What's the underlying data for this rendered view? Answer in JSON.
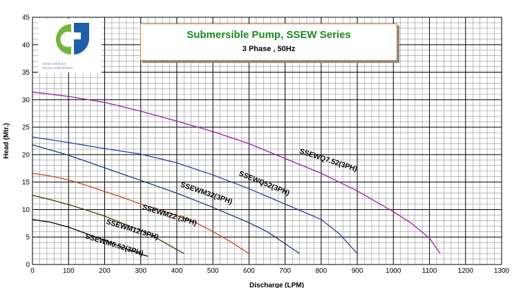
{
  "header": {
    "title": "Submersible Pump, SSEW Series",
    "subtitle": "3 Phase , 50Hz"
  },
  "logo": {
    "tagline_line1": "Smart solutions.",
    "tagline_line2": "Strong relationships.",
    "colors": {
      "green": "#74b43c",
      "blue": "#1f5fa8"
    }
  },
  "chart_data": {
    "type": "line",
    "title": "Submersible Pump, SSEW Series",
    "subtitle": "3 Phase , 50Hz",
    "xlabel": "Discharge (LPM)",
    "ylabel": "Head (Mtr.)",
    "xlim": [
      0,
      1300
    ],
    "ylim": [
      0,
      45
    ],
    "x_ticks": [
      0,
      100,
      200,
      300,
      400,
      500,
      600,
      700,
      800,
      900,
      1000,
      1100,
      1200,
      1300
    ],
    "y_ticks": [
      0,
      5,
      10,
      15,
      20,
      25,
      30,
      35,
      40,
      45
    ],
    "grid": true,
    "series": [
      {
        "name": "SSEWM0.52(3PH)",
        "color": "#000000",
        "x": [
          0,
          50,
          100,
          150,
          200,
          250,
          300,
          320
        ],
        "y": [
          8.2,
          7.7,
          6.8,
          5.6,
          4.4,
          3.1,
          1.9,
          1.5
        ]
      },
      {
        "name": "SSEWM12(3PH)",
        "color": "#3a3a10",
        "x": [
          0,
          50,
          100,
          150,
          200,
          250,
          300,
          350,
          400,
          420
        ],
        "y": [
          12.6,
          11.8,
          10.9,
          9.9,
          8.8,
          7.5,
          6.2,
          4.6,
          2.7,
          2.0
        ]
      },
      {
        "name": "SSEWM22 (3PH)",
        "color": "#c8461e",
        "x": [
          0,
          50,
          100,
          150,
          200,
          250,
          300,
          350,
          400,
          450,
          500,
          550,
          600
        ],
        "y": [
          16.6,
          16.1,
          15.4,
          14.4,
          13.3,
          12.2,
          11.0,
          10.0,
          8.9,
          7.7,
          6.0,
          4.1,
          2.0
        ]
      },
      {
        "name": "SSEWM32(3PH)",
        "color": "#1e3a78",
        "x": [
          0,
          100,
          200,
          300,
          400,
          500,
          600,
          650,
          700,
          740
        ],
        "y": [
          21.8,
          19.9,
          17.6,
          15.3,
          13.0,
          10.4,
          7.6,
          6.0,
          3.8,
          2.0
        ]
      },
      {
        "name": "SSEWQ52(3PH)",
        "color": "#2a3ca8",
        "x": [
          0,
          100,
          200,
          300,
          400,
          500,
          600,
          700,
          750,
          800,
          850,
          900
        ],
        "y": [
          23.2,
          22.2,
          21.1,
          20.1,
          18.5,
          16.3,
          13.8,
          11.0,
          9.6,
          8.2,
          5.6,
          2.0
        ]
      },
      {
        "name": "SSEWQ7.52(3PH)",
        "color": "#9a1e9a",
        "x": [
          0,
          100,
          200,
          300,
          400,
          500,
          600,
          700,
          800,
          900,
          1000,
          1050,
          1100,
          1130
        ],
        "y": [
          31.4,
          30.6,
          29.5,
          27.9,
          26.1,
          24.2,
          22.0,
          19.3,
          16.6,
          13.4,
          9.6,
          7.5,
          4.8,
          2.0
        ]
      }
    ]
  }
}
